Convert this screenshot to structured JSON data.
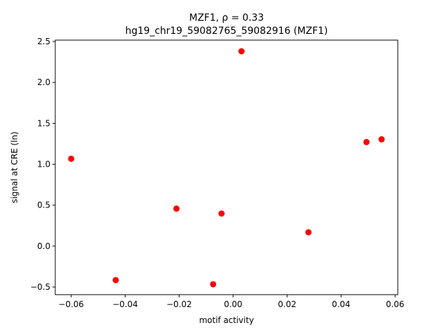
{
  "chart_data": {
    "type": "scatter",
    "title": [
      "MZF1, ρ = 0.33",
      "hg19_chr19_59082765_59082916 (MZF1)"
    ],
    "x_label": "motif activity",
    "y_label": "signal at CRE (ln)",
    "color": "#ff0000",
    "x": [
      -0.06,
      -0.0435,
      -0.021,
      -0.0074,
      -0.0043,
      0.0031,
      0.0279,
      0.0494,
      0.055
    ],
    "values": [
      1.068,
      -0.415,
      0.458,
      -0.466,
      0.398,
      2.381,
      0.169,
      1.271,
      1.305
    ],
    "xlim": [
      -0.0659,
      0.061
    ],
    "ylim": [
      -0.593,
      2.517
    ],
    "xticks": [
      {
        "value": -0.06,
        "label": "−0.06"
      },
      {
        "value": -0.04,
        "label": "−0.04"
      },
      {
        "value": -0.02,
        "label": "−0.02"
      },
      {
        "value": 0,
        "label": "0.00"
      },
      {
        "value": 0.02,
        "label": "0.02"
      },
      {
        "value": 0.04,
        "label": "0.04"
      },
      {
        "value": 0.06,
        "label": "0.06"
      }
    ],
    "yticks": [
      {
        "value": -0.5,
        "label": "−0.5"
      },
      {
        "value": 0,
        "label": "0.0"
      },
      0.5,
      {
        "value": 1,
        "label": "1.0"
      },
      1.5,
      {
        "value": 2,
        "label": "2.0"
      },
      2.5
    ],
    "grid": false
  }
}
